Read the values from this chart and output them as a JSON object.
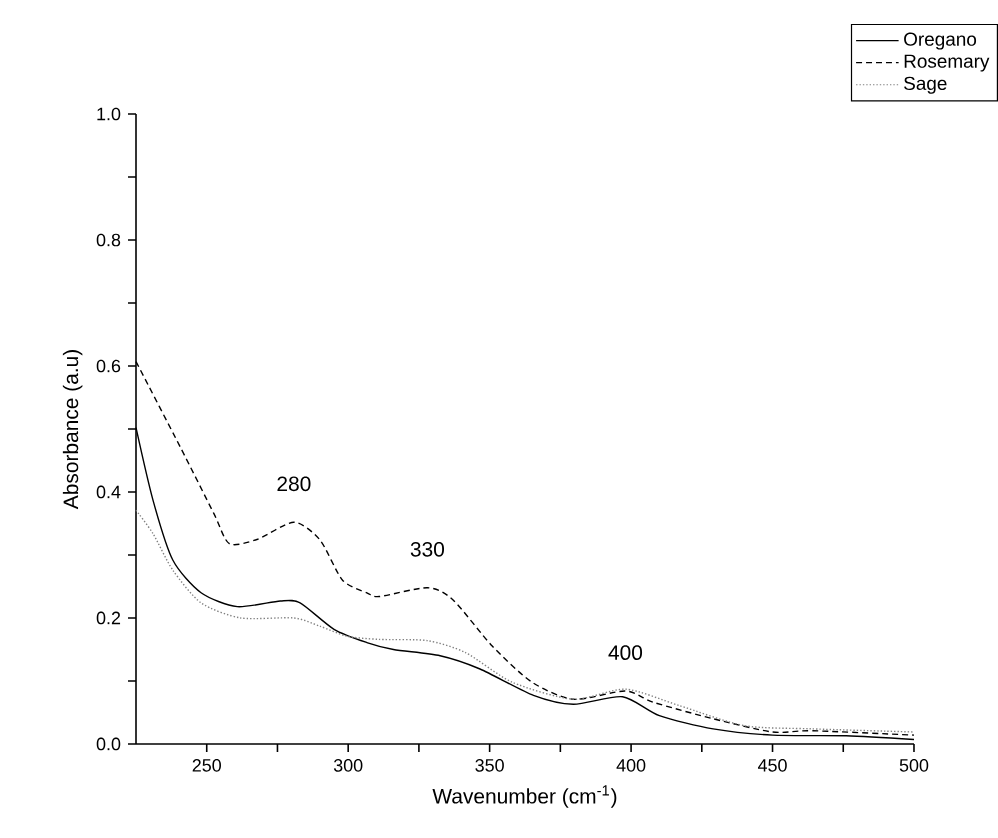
{
  "chart_data": {
    "type": "line",
    "xlabel": "Wavenumber (cm$^{-1}$)",
    "ylabel": "Absorbance (a.u)",
    "xlim": [
      225,
      500
    ],
    "ylim": [
      0,
      1.0
    ],
    "xticks": [
      {
        "value": 250,
        "label": "250"
      },
      {
        "value": 275,
        "label": null
      },
      {
        "value": 300,
        "label": "300"
      },
      {
        "value": 325,
        "label": null
      },
      {
        "value": 350,
        "label": "350"
      },
      {
        "value": 375,
        "label": null
      },
      {
        "value": 400,
        "label": "400"
      },
      {
        "value": 425,
        "label": null
      },
      {
        "value": 450,
        "label": "450"
      },
      {
        "value": 475,
        "label": null
      },
      {
        "value": 500,
        "label": "500"
      }
    ],
    "yticks": [
      {
        "value": 0,
        "label": "0.0"
      },
      {
        "value": 0.1,
        "label": null
      },
      {
        "value": 0.2,
        "label": "0.2"
      },
      {
        "value": 0.3,
        "label": null
      },
      {
        "value": 0.4,
        "label": "0.4"
      },
      {
        "value": 0.5,
        "label": null
      },
      {
        "value": 0.6,
        "label": "0.6"
      },
      {
        "value": 0.7,
        "label": null
      },
      {
        "value": 0.8,
        "label": "0.8"
      },
      {
        "value": 0.9,
        "label": null
      },
      {
        "value": 1.0,
        "label": "1.0"
      }
    ],
    "grid": false,
    "legend": "top right",
    "marker": "none",
    "annotations": [
      {
        "text": "280",
        "x": 280.8,
        "y": 0.352
      },
      {
        "text": "330",
        "x": 328,
        "y": 0.248
      },
      {
        "text": "400",
        "x": 398,
        "y": 0.084
      }
    ],
    "series": [
      {
        "name": "Oregano",
        "color": "#000000",
        "line_style": "solid",
        "x": [
          225,
          231,
          238,
          248,
          260.8,
          276,
          283,
          295,
          306.6,
          316,
          332.5,
          346.6,
          365.5,
          379.6,
          397,
          410,
          429,
          450,
          476,
          500
        ],
        "values": [
          0.502,
          0.387,
          0.292,
          0.24,
          0.218,
          0.227,
          0.224,
          0.182,
          0.161,
          0.15,
          0.14,
          0.119,
          0.077,
          0.063,
          0.075,
          0.045,
          0.024,
          0.014,
          0.013,
          0.007
        ]
      },
      {
        "name": "Rosemary",
        "color": "#000000",
        "line_style": "dashed",
        "x": [
          225,
          240.8,
          252.5,
          258,
          268,
          280.8,
          290,
          298,
          306.6,
          311,
          328,
          337,
          351,
          365,
          379.6,
          398,
          408,
          429,
          450,
          464,
          500
        ],
        "values": [
          0.607,
          0.47,
          0.366,
          0.318,
          0.325,
          0.352,
          0.324,
          0.26,
          0.24,
          0.234,
          0.248,
          0.229,
          0.155,
          0.098,
          0.071,
          0.084,
          0.066,
          0.04,
          0.019,
          0.021,
          0.014
        ]
      },
      {
        "name": "Sage",
        "color": "#808080",
        "line_style": "dotted",
        "x": [
          225,
          231,
          238,
          248,
          262,
          280.8,
          290,
          299.6,
          311,
          328,
          341.5,
          358,
          379.6,
          398,
          417,
          440,
          464,
          500
        ],
        "values": [
          0.371,
          0.334,
          0.276,
          0.224,
          0.2,
          0.2,
          0.187,
          0.171,
          0.166,
          0.164,
          0.145,
          0.098,
          0.071,
          0.087,
          0.061,
          0.029,
          0.024,
          0.019
        ]
      }
    ]
  }
}
